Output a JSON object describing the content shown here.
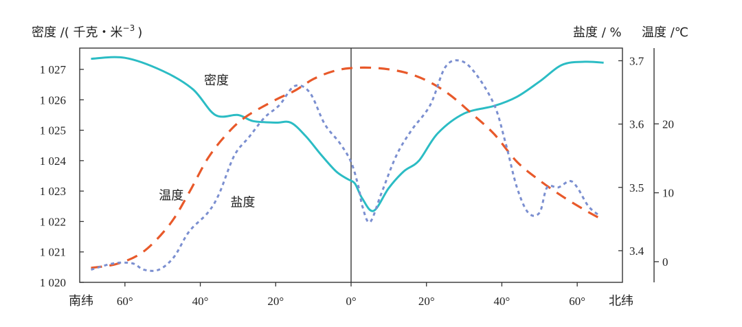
{
  "chart_data": {
    "type": "line",
    "x_axis": {
      "range": [
        -72,
        72
      ],
      "ticks": [
        {
          "value": -60,
          "label": "60°"
        },
        {
          "value": -40,
          "label": "40°"
        },
        {
          "value": -20,
          "label": "20°"
        },
        {
          "value": 0,
          "label": "0°"
        },
        {
          "value": 20,
          "label": "20°"
        },
        {
          "value": 40,
          "label": "40°"
        },
        {
          "value": 60,
          "label": "60°"
        }
      ],
      "south_label": "南纬",
      "north_label": "北纬"
    },
    "axes": {
      "density": {
        "label": "密度 /( 千克・米",
        "label_exp": "−3",
        "label_close": ")",
        "range": [
          1020,
          1027.7
        ],
        "ticks": [
          {
            "value": 1020,
            "label": "1 020"
          },
          {
            "value": 1021,
            "label": "1 021"
          },
          {
            "value": 1022,
            "label": "1 022"
          },
          {
            "value": 1023,
            "label": "1 023"
          },
          {
            "value": 1024,
            "label": "1 024"
          },
          {
            "value": 1025,
            "label": "1 025"
          },
          {
            "value": 1026,
            "label": "1 026"
          },
          {
            "value": 1027,
            "label": "1 027"
          }
        ]
      },
      "salinity": {
        "label": "盐度 / %",
        "range": [
          3.35,
          3.72
        ],
        "ticks": [
          {
            "value": 3.4,
            "label": "3.4"
          },
          {
            "value": 3.5,
            "label": "3.5"
          },
          {
            "value": 3.6,
            "label": "3.6"
          },
          {
            "value": 3.7,
            "label": "3.7"
          }
        ]
      },
      "temperature": {
        "label": "温度 /℃",
        "range": [
          -3,
          31
        ],
        "ticks": [
          {
            "value": 0,
            "label": "0"
          },
          {
            "value": 10,
            "label": "10"
          },
          {
            "value": 20,
            "label": "20"
          }
        ]
      }
    },
    "series": [
      {
        "name": "密度",
        "axis": "density",
        "color": "#2bbcc4",
        "dash": "solid",
        "label_at": {
          "x": -39,
          "y": 1026.5
        },
        "points": [
          [
            -69,
            1027.35
          ],
          [
            -60,
            1027.38
          ],
          [
            -50,
            1026.95
          ],
          [
            -42,
            1026.35
          ],
          [
            -36,
            1025.5
          ],
          [
            -30,
            1025.5
          ],
          [
            -26,
            1025.3
          ],
          [
            -20,
            1025.25
          ],
          [
            -16,
            1025.25
          ],
          [
            -12,
            1024.8
          ],
          [
            -8,
            1024.2
          ],
          [
            -4,
            1023.65
          ],
          [
            -1,
            1023.4
          ],
          [
            1,
            1023.25
          ],
          [
            3,
            1022.75
          ],
          [
            6,
            1022.35
          ],
          [
            10,
            1023.1
          ],
          [
            14,
            1023.65
          ],
          [
            18,
            1024.0
          ],
          [
            23,
            1024.9
          ],
          [
            30,
            1025.55
          ],
          [
            38,
            1025.8
          ],
          [
            44,
            1026.1
          ],
          [
            50,
            1026.6
          ],
          [
            56,
            1027.15
          ],
          [
            62,
            1027.25
          ],
          [
            67,
            1027.22
          ]
        ]
      },
      {
        "name": "温度",
        "axis": "temperature",
        "color": "#e8592a",
        "dash": "long",
        "label_at": {
          "x": -51,
          "y": 9
        },
        "points": [
          [
            -69,
            -0.9
          ],
          [
            -62,
            -0.3
          ],
          [
            -55,
            1.5
          ],
          [
            -48,
            5.5
          ],
          [
            -43,
            10
          ],
          [
            -38,
            15
          ],
          [
            -33,
            18.5
          ],
          [
            -28,
            21
          ],
          [
            -20,
            23.5
          ],
          [
            -15,
            24.8
          ],
          [
            -10,
            26.5
          ],
          [
            -5,
            27.6
          ],
          [
            0,
            28.1
          ],
          [
            7,
            28.1
          ],
          [
            14,
            27.5
          ],
          [
            20,
            26.3
          ],
          [
            26,
            24.3
          ],
          [
            32,
            21.5
          ],
          [
            38,
            18.5
          ],
          [
            44,
            14.5
          ],
          [
            50,
            11.8
          ],
          [
            56,
            9.5
          ],
          [
            62,
            7.5
          ],
          [
            66,
            6.3
          ]
        ]
      },
      {
        "name": "盐度",
        "axis": "salinity",
        "color": "#7b8fd0",
        "dash": "short",
        "label_at": {
          "x": -32,
          "y": 3.47
        },
        "points": [
          [
            -69,
            3.37
          ],
          [
            -63,
            3.38
          ],
          [
            -58,
            3.38
          ],
          [
            -55,
            3.37
          ],
          [
            -51,
            3.37
          ],
          [
            -47,
            3.39
          ],
          [
            -43,
            3.43
          ],
          [
            -38,
            3.46
          ],
          [
            -35,
            3.49
          ],
          [
            -31,
            3.55
          ],
          [
            -27,
            3.58
          ],
          [
            -23,
            3.61
          ],
          [
            -19,
            3.63
          ],
          [
            -15,
            3.66
          ],
          [
            -11,
            3.65
          ],
          [
            -7,
            3.6
          ],
          [
            -3,
            3.57
          ],
          [
            0,
            3.54
          ],
          [
            2,
            3.5
          ],
          [
            3,
            3.47
          ],
          [
            5,
            3.445
          ],
          [
            8,
            3.49
          ],
          [
            12,
            3.55
          ],
          [
            16,
            3.59
          ],
          [
            21,
            3.63
          ],
          [
            25,
            3.69
          ],
          [
            29,
            3.7
          ],
          [
            33,
            3.68
          ],
          [
            38,
            3.63
          ],
          [
            41,
            3.57
          ],
          [
            44,
            3.5
          ],
          [
            47,
            3.46
          ],
          [
            50,
            3.46
          ],
          [
            52,
            3.5
          ],
          [
            55,
            3.5
          ],
          [
            58,
            3.51
          ],
          [
            60,
            3.5
          ],
          [
            63,
            3.47
          ],
          [
            66,
            3.455
          ]
        ]
      }
    ]
  }
}
